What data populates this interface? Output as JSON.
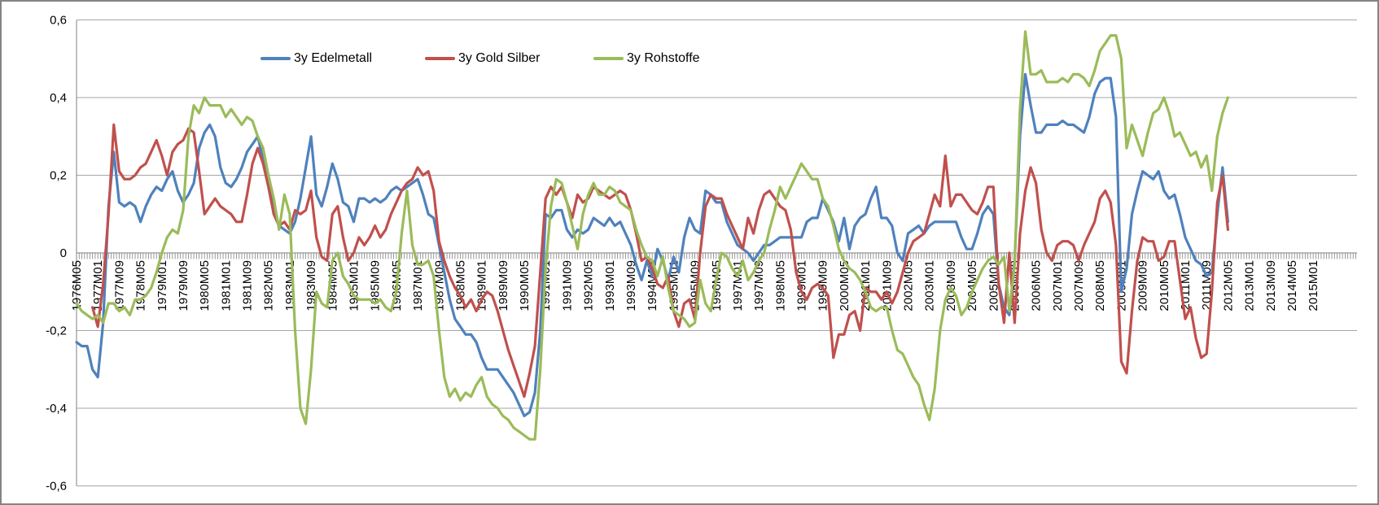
{
  "chart_data": {
    "type": "line",
    "title": "",
    "legend_position": "top-inside",
    "grid": true,
    "legend": [
      {
        "label": "3y Edelmetall",
        "color": "#4F81BD",
        "x": 318
      },
      {
        "label": "3y Gold Silber",
        "color": "#C0504D",
        "x": 520
      },
      {
        "label": "3y Rohstoffe",
        "color": "#9BBB59",
        "x": 727
      }
    ],
    "y_axis": {
      "min": -0.6,
      "max": 0.6,
      "step": 0.2,
      "ticks": [
        {
          "label": "0,6",
          "value": 0.6
        },
        {
          "label": "0,4",
          "value": 0.4
        },
        {
          "label": "0,2",
          "value": 0.2
        },
        {
          "label": "0",
          "value": 0.0
        },
        {
          "label": "-0,2",
          "value": -0.2
        },
        {
          "label": "-0,4",
          "value": -0.4
        },
        {
          "label": "-0,6",
          "value": -0.6
        }
      ]
    },
    "x_axis": {
      "start": "1976M05",
      "end_of_axis": "2016M05",
      "label_interval_months": 8,
      "minor_tick_months": 1,
      "total_axis_months": 480,
      "labels": [
        "1976M05",
        "1977M01",
        "1977M09",
        "1978M05",
        "1979M01",
        "1979M09",
        "1980M05",
        "1981M01",
        "1981M09",
        "1982M05",
        "1983M01",
        "1983M09",
        "1984M05",
        "1985M01",
        "1985M09",
        "1986M05",
        "1987M01",
        "1987M09",
        "1988M05",
        "1989M01",
        "1989M09",
        "1990M05",
        "1991M01",
        "1991M09",
        "1992M05",
        "1993M01",
        "1993M09",
        "1994M05",
        "1995M01",
        "1995M09",
        "1996M05",
        "1997M01",
        "1997M09",
        "1998M05",
        "1999M01",
        "1999M09",
        "2000M05",
        "2001M01",
        "2001M09",
        "2002M05",
        "2003M01",
        "2003M09",
        "2004M05",
        "2005M01",
        "2005M09",
        "2006M05",
        "2007M01",
        "2007M09",
        "2008M05",
        "2009M01",
        "2009M09",
        "2010M05",
        "2011M01",
        "2011M09",
        "2012M05",
        "2013M01",
        "2013M09",
        "2014M05",
        "2015M01"
      ]
    },
    "series_note": "values sampled every 2 months; start_month_index is months after 1976M05; data ends 2012M05",
    "series": [
      {
        "name": "3y Edelmetall",
        "color": "#4F81BD",
        "start_month_index": 0,
        "step_months": 2,
        "values": [
          -0.23,
          -0.24,
          -0.24,
          -0.3,
          -0.32,
          -0.18,
          0.12,
          0.26,
          0.13,
          0.12,
          0.13,
          0.12,
          0.08,
          0.12,
          0.15,
          0.17,
          0.16,
          0.19,
          0.21,
          0.16,
          0.13,
          0.15,
          0.18,
          0.27,
          0.31,
          0.33,
          0.3,
          0.22,
          0.18,
          0.17,
          0.19,
          0.22,
          0.26,
          0.28,
          0.3,
          0.24,
          0.2,
          0.1,
          0.07,
          0.06,
          0.05,
          0.08,
          0.14,
          0.22,
          0.3,
          0.15,
          0.12,
          0.17,
          0.23,
          0.19,
          0.13,
          0.12,
          0.08,
          0.14,
          0.14,
          0.13,
          0.14,
          0.13,
          0.14,
          0.16,
          0.17,
          0.16,
          0.17,
          0.18,
          0.19,
          0.15,
          0.1,
          0.09,
          0.02,
          -0.05,
          -0.12,
          -0.17,
          -0.19,
          -0.21,
          -0.21,
          -0.23,
          -0.27,
          -0.3,
          -0.3,
          -0.3,
          -0.32,
          -0.34,
          -0.36,
          -0.39,
          -0.42,
          -0.41,
          -0.36,
          -0.2,
          0.1,
          0.09,
          0.11,
          0.11,
          0.06,
          0.04,
          0.06,
          0.05,
          0.06,
          0.09,
          0.08,
          0.07,
          0.09,
          0.07,
          0.08,
          0.05,
          0.02,
          -0.03,
          -0.07,
          -0.02,
          -0.06,
          0.01,
          -0.02,
          -0.07,
          -0.01,
          -0.05,
          0.04,
          0.09,
          0.06,
          0.05,
          0.16,
          0.15,
          0.13,
          0.13,
          0.08,
          0.05,
          0.02,
          0.01,
          0.0,
          -0.02,
          0.0,
          0.02,
          0.02,
          0.03,
          0.04,
          0.04,
          0.04,
          0.04,
          0.04,
          0.08,
          0.09,
          0.09,
          0.14,
          0.11,
          0.08,
          0.03,
          0.09,
          0.01,
          0.07,
          0.09,
          0.1,
          0.14,
          0.17,
          0.09,
          0.09,
          0.07,
          0.0,
          -0.02,
          0.05,
          0.06,
          0.07,
          0.05,
          0.07,
          0.08,
          0.08,
          0.08,
          0.08,
          0.08,
          0.04,
          0.01,
          0.01,
          0.05,
          0.1,
          0.12,
          0.1,
          -0.08,
          -0.14,
          -0.16,
          -0.02,
          0.3,
          0.46,
          0.38,
          0.31,
          0.31,
          0.33,
          0.33,
          0.33,
          0.34,
          0.33,
          0.33,
          0.32,
          0.31,
          0.35,
          0.41,
          0.44,
          0.45,
          0.45,
          0.35,
          -0.1,
          -0.04,
          0.1,
          0.16,
          0.21,
          0.2,
          0.19,
          0.21,
          0.16,
          0.14,
          0.15,
          0.1,
          0.04,
          0.01,
          -0.02,
          -0.03,
          -0.06,
          -0.05,
          0.1,
          0.22,
          0.08
        ]
      },
      {
        "name": "3y Gold Silber",
        "color": "#C0504D",
        "start_month_index": 6,
        "step_months": 2,
        "values": [
          -0.14,
          -0.19,
          -0.08,
          0.1,
          0.33,
          0.21,
          0.19,
          0.19,
          0.2,
          0.22,
          0.23,
          0.26,
          0.29,
          0.25,
          0.2,
          0.26,
          0.28,
          0.29,
          0.32,
          0.31,
          0.21,
          0.1,
          0.12,
          0.14,
          0.12,
          0.11,
          0.1,
          0.08,
          0.08,
          0.15,
          0.23,
          0.27,
          0.23,
          0.17,
          0.1,
          0.07,
          0.08,
          0.06,
          0.11,
          0.1,
          0.11,
          0.16,
          0.04,
          -0.01,
          -0.02,
          0.1,
          0.12,
          0.04,
          -0.02,
          0.0,
          0.04,
          0.02,
          0.04,
          0.07,
          0.04,
          0.06,
          0.1,
          0.13,
          0.16,
          0.18,
          0.19,
          0.22,
          0.2,
          0.21,
          0.16,
          0.03,
          -0.02,
          -0.06,
          -0.09,
          -0.11,
          -0.14,
          -0.12,
          -0.15,
          -0.12,
          -0.1,
          -0.11,
          -0.15,
          -0.2,
          -0.25,
          -0.29,
          -0.33,
          -0.37,
          -0.31,
          -0.24,
          -0.05,
          0.14,
          0.17,
          0.15,
          0.17,
          0.13,
          0.09,
          0.15,
          0.13,
          0.14,
          0.17,
          0.16,
          0.15,
          0.14,
          0.15,
          0.16,
          0.15,
          0.11,
          0.05,
          -0.02,
          -0.01,
          -0.04,
          -0.08,
          -0.09,
          -0.06,
          -0.15,
          -0.19,
          -0.13,
          -0.12,
          -0.17,
          0.0,
          0.12,
          0.15,
          0.14,
          0.14,
          0.1,
          0.07,
          0.04,
          0.01,
          0.09,
          0.05,
          0.11,
          0.15,
          0.16,
          0.14,
          0.12,
          0.11,
          0.06,
          -0.05,
          -0.1,
          -0.12,
          -0.09,
          -0.08,
          -0.09,
          -0.11,
          -0.27,
          -0.21,
          -0.21,
          -0.16,
          -0.15,
          -0.2,
          -0.09,
          -0.1,
          -0.1,
          -0.12,
          -0.1,
          -0.13,
          -0.1,
          -0.05,
          0.0,
          0.03,
          0.04,
          0.05,
          0.1,
          0.15,
          0.12,
          0.25,
          0.12,
          0.15,
          0.15,
          0.13,
          0.11,
          0.1,
          0.13,
          0.17,
          0.17,
          -0.08,
          -0.18,
          0.0,
          -0.18,
          0.05,
          0.16,
          0.22,
          0.18,
          0.06,
          0.0,
          -0.02,
          0.02,
          0.03,
          0.03,
          0.02,
          -0.02,
          0.02,
          0.05,
          0.08,
          0.14,
          0.16,
          0.13,
          0.02,
          -0.28,
          -0.31,
          -0.15,
          -0.02,
          0.04,
          0.03,
          0.03,
          -0.02,
          -0.01,
          0.03,
          0.03,
          -0.07,
          -0.17,
          -0.14,
          -0.22,
          -0.27,
          -0.26,
          -0.1,
          0.13,
          0.2,
          0.06
        ]
      },
      {
        "name": "3y Rohstoffe",
        "color": "#9BBB59",
        "start_month_index": 0,
        "step_months": 2,
        "values": [
          -0.13,
          -0.15,
          -0.16,
          -0.17,
          -0.16,
          -0.18,
          -0.13,
          -0.13,
          -0.15,
          -0.14,
          -0.16,
          -0.12,
          -0.12,
          -0.11,
          -0.09,
          -0.05,
          0.0,
          0.04,
          0.06,
          0.05,
          0.11,
          0.3,
          0.38,
          0.36,
          0.4,
          0.38,
          0.38,
          0.38,
          0.35,
          0.37,
          0.35,
          0.33,
          0.35,
          0.34,
          0.3,
          0.27,
          0.2,
          0.14,
          0.06,
          0.15,
          0.1,
          -0.2,
          -0.4,
          -0.44,
          -0.3,
          -0.1,
          -0.13,
          -0.14,
          -0.02,
          0.0,
          -0.06,
          -0.08,
          -0.11,
          -0.12,
          -0.12,
          -0.12,
          -0.13,
          -0.12,
          -0.14,
          -0.15,
          -0.1,
          0.05,
          0.16,
          0.02,
          -0.03,
          -0.03,
          -0.02,
          -0.06,
          -0.2,
          -0.32,
          -0.37,
          -0.35,
          -0.38,
          -0.36,
          -0.37,
          -0.34,
          -0.32,
          -0.37,
          -0.39,
          -0.4,
          -0.42,
          -0.43,
          -0.45,
          -0.46,
          -0.47,
          -0.48,
          -0.48,
          -0.3,
          -0.04,
          0.12,
          0.19,
          0.18,
          0.13,
          0.07,
          0.01,
          0.1,
          0.15,
          0.18,
          0.15,
          0.15,
          0.17,
          0.16,
          0.13,
          0.12,
          0.11,
          0.06,
          0.02,
          -0.01,
          -0.02,
          -0.06,
          -0.01,
          -0.09,
          -0.15,
          -0.16,
          -0.17,
          -0.19,
          -0.18,
          -0.07,
          -0.13,
          -0.15,
          -0.07,
          0.0,
          -0.01,
          -0.04,
          -0.06,
          -0.02,
          -0.07,
          -0.05,
          -0.02,
          0.0,
          0.06,
          0.11,
          0.17,
          0.14,
          0.17,
          0.2,
          0.23,
          0.21,
          0.19,
          0.19,
          0.14,
          0.12,
          0.07,
          0.01,
          -0.02,
          -0.04,
          -0.05,
          -0.07,
          -0.1,
          -0.14,
          -0.15,
          -0.14,
          -0.14,
          -0.2,
          -0.25,
          -0.26,
          -0.29,
          -0.32,
          -0.34,
          -0.39,
          -0.43,
          -0.35,
          -0.2,
          -0.12,
          -0.09,
          -0.11,
          -0.16,
          -0.14,
          -0.1,
          -0.07,
          -0.04,
          -0.02,
          -0.01,
          -0.03,
          -0.01,
          -0.15,
          -0.03,
          0.37,
          0.57,
          0.46,
          0.46,
          0.47,
          0.44,
          0.44,
          0.44,
          0.45,
          0.44,
          0.46,
          0.46,
          0.45,
          0.43,
          0.47,
          0.52,
          0.54,
          0.56,
          0.56,
          0.5,
          0.27,
          0.33,
          0.29,
          0.25,
          0.31,
          0.36,
          0.37,
          0.4,
          0.36,
          0.3,
          0.31,
          0.28,
          0.25,
          0.26,
          0.22,
          0.25,
          0.16,
          0.3,
          0.36,
          0.4
        ]
      }
    ]
  },
  "colors": {
    "background": "#FFFFFF",
    "border": "#848484",
    "gridline": "#A6A6A6",
    "axis": "#808080",
    "tick": "#808080",
    "text": "#000000"
  }
}
